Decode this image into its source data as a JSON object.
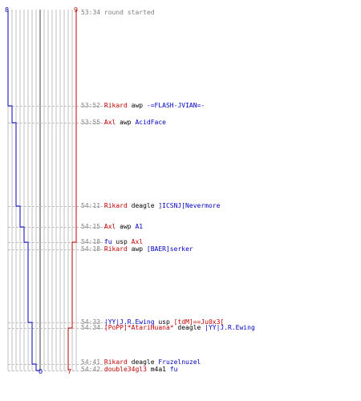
{
  "scores": {
    "blue_start": "8",
    "red_start": "9",
    "blue_end": "0",
    "red_end": "7"
  },
  "colors": {
    "blue": "#0000c0",
    "red": "#c00000",
    "time": "#7f7f7f",
    "grid": "#bfbfbf",
    "dash": "#bfbfbf",
    "center": "#808080"
  },
  "events": [
    {
      "time": "53:34",
      "parts": [
        {
          "text": "round started",
          "color": "gray"
        }
      ]
    },
    {
      "time": "53:52",
      "parts": [
        {
          "text": "Rikard",
          "color": "red"
        },
        {
          "text": " awp ",
          "color": "blk"
        },
        {
          "text": "-=FLASH-JVIAN=-",
          "color": "blue"
        }
      ]
    },
    {
      "time": "53:55",
      "parts": [
        {
          "text": "Axl",
          "color": "red"
        },
        {
          "text": " awp ",
          "color": "blk"
        },
        {
          "text": "AcidFace",
          "color": "blue"
        }
      ]
    },
    {
      "time": "54:11",
      "parts": [
        {
          "text": "Rikard",
          "color": "red"
        },
        {
          "text": " deagle ",
          "color": "blk"
        },
        {
          "text": "]ICSNJ[Nevermore",
          "color": "blue"
        }
      ]
    },
    {
      "time": "54:15",
      "parts": [
        {
          "text": "Axl",
          "color": "red"
        },
        {
          "text": " awp ",
          "color": "blk"
        },
        {
          "text": "A1",
          "color": "blue"
        }
      ]
    },
    {
      "time": "54:18",
      "parts": [
        {
          "text": "fu",
          "color": "blue"
        },
        {
          "text": " usp ",
          "color": "blk"
        },
        {
          "text": "Axl",
          "color": "red"
        }
      ]
    },
    {
      "time": "54:18",
      "parts": [
        {
          "text": "Rikard",
          "color": "red"
        },
        {
          "text": " awp ",
          "color": "blk"
        },
        {
          "text": "[BAER]serker",
          "color": "blue"
        }
      ]
    },
    {
      "time": "54:33",
      "parts": [
        {
          "text": "|YY|J.R.Ewing",
          "color": "blue"
        },
        {
          "text": " usp ",
          "color": "blk"
        },
        {
          "text": "[tdM]==Ju0x3[",
          "color": "red"
        }
      ]
    },
    {
      "time": "54:34",
      "parts": [
        {
          "text": "[PoPP]*AtariHuana*",
          "color": "red"
        },
        {
          "text": " deagle ",
          "color": "blk"
        },
        {
          "text": "|YY|J.R.Ewing",
          "color": "blue"
        }
      ]
    },
    {
      "time": "54:41",
      "parts": [
        {
          "text": "Rikard",
          "color": "red"
        },
        {
          "text": " deagle ",
          "color": "blk"
        },
        {
          "text": "Fruzelnuzel",
          "color": "blue"
        }
      ]
    },
    {
      "time": "54:42",
      "parts": [
        {
          "text": "double34gl3",
          "color": "red"
        },
        {
          "text": " m4a1 ",
          "color": "blk"
        },
        {
          "text": "fu",
          "color": "blue"
        }
      ]
    }
  ],
  "chart_data": {
    "type": "line",
    "x": [
      "53:34",
      "53:52",
      "53:55",
      "54:11",
      "54:15",
      "54:18",
      "54:18",
      "54:33",
      "54:34",
      "54:41",
      "54:42"
    ],
    "series": [
      {
        "values": [
          8,
          7,
          6,
          5,
          4,
          3,
          3,
          2,
          2,
          1,
          0
        ]
      },
      {
        "values": [
          9,
          9,
          9,
          9,
          9,
          8,
          8,
          8,
          7,
          7,
          7
        ]
      }
    ],
    "ylim": [
      0,
      9
    ],
    "grid": true
  }
}
